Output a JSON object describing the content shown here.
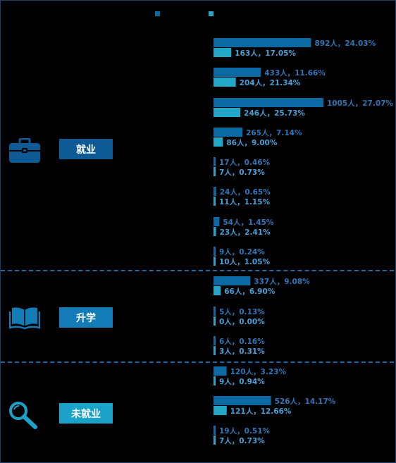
{
  "colors": {
    "series_a": "#0b6aa4",
    "series_b": "#23a6c8",
    "label_a": "#2f76b9",
    "label_b": "#4aa0d8",
    "divider": "#1d6aa8",
    "cat_employed": "#0e5a94",
    "cat_study": "#137bb6",
    "cat_unemployed": "#1aa2c8"
  },
  "categories": [
    {
      "label": "就业",
      "icon": "briefcase-icon"
    },
    {
      "label": "升学",
      "icon": "open-book-icon"
    },
    {
      "label": "未就业",
      "icon": "magnifier-icon"
    }
  ],
  "chart_data": {
    "type": "bar",
    "orientation": "horizontal",
    "groups": [
      {
        "category": "就业",
        "rows": [
          0,
          1,
          2,
          3,
          4,
          5,
          6,
          7
        ]
      },
      {
        "category": "升学",
        "rows": [
          8,
          9,
          10
        ]
      },
      {
        "category": "未就业",
        "rows": [
          11,
          12,
          13
        ]
      }
    ],
    "series": [
      {
        "values": [
          892,
          433,
          1005,
          265,
          17,
          24,
          54,
          9,
          337,
          5,
          6,
          120,
          526,
          19
        ],
        "labels": [
          "892人，24.03%",
          "433人，11.66%",
          "1005人，27.07%",
          "265人，7.14%",
          "17人，0.46%",
          "24人，0.65%",
          "54人，1.45%",
          "9人，0.24%",
          "337人，9.08%",
          "5人，0.13%",
          "6人，0.16%",
          "120人，3.23%",
          "526人，14.17%",
          "19人，0.51%"
        ]
      },
      {
        "values": [
          163,
          204,
          246,
          86,
          7,
          11,
          23,
          10,
          66,
          0,
          3,
          9,
          121,
          7
        ],
        "labels": [
          "163人，17.05%",
          "204人，21.34%",
          "246人，25.73%",
          "86人，9.00%",
          "7人，0.73%",
          "11人，1.15%",
          "23人，2.41%",
          "10人，1.05%",
          "66人，6.90%",
          "0人，0.00%",
          "3人，0.31%",
          "9人，0.94%",
          "121人，12.66%",
          "7人，0.73%"
        ]
      }
    ],
    "legend_position": "top-center",
    "grid": false
  }
}
